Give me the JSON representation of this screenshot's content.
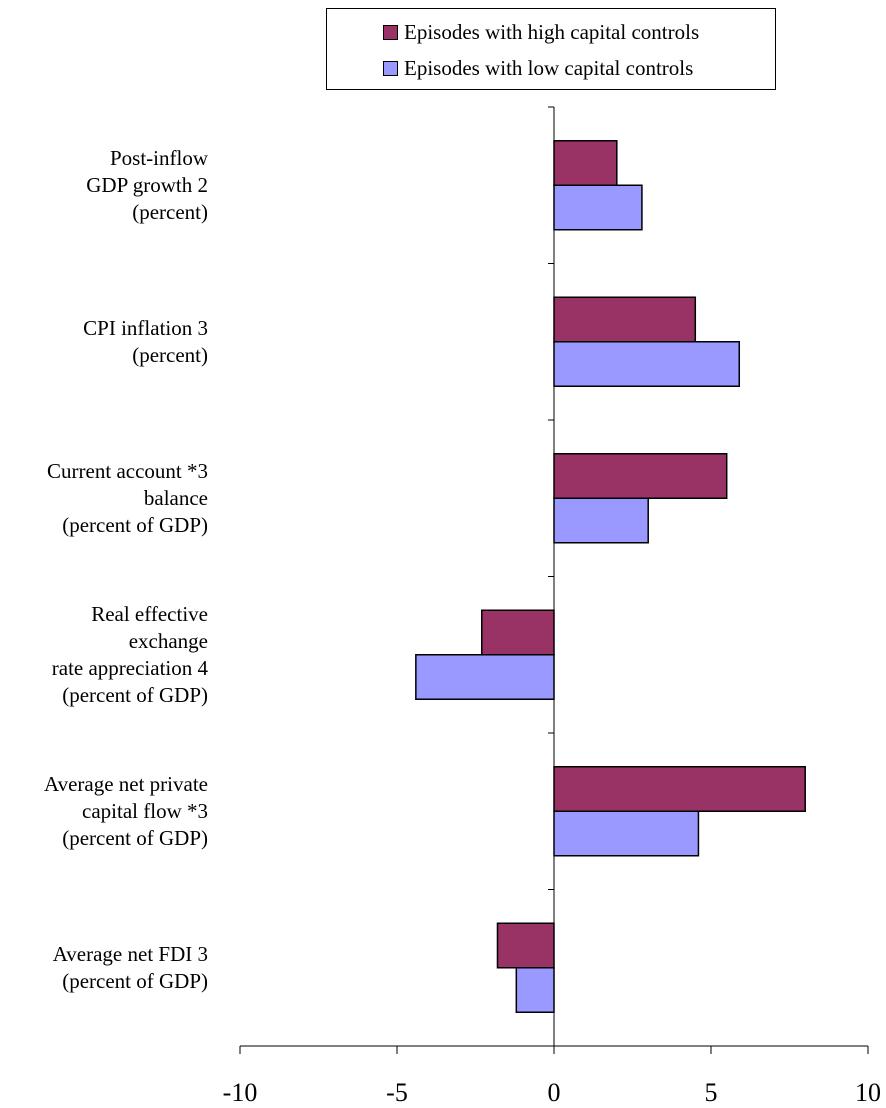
{
  "chart_data": {
    "type": "bar",
    "orientation": "horizontal",
    "title": "",
    "xlabel": "",
    "ylabel": "",
    "xlim": [
      -10,
      10
    ],
    "xticks": [
      "-10",
      "-5",
      "0",
      "5",
      "10"
    ],
    "categories": [
      [
        "Post-inflow",
        "GDP growth 2",
        "(percent)"
      ],
      [
        "CPI inflation 3",
        "(percent)"
      ],
      [
        "Current account *3",
        "balance",
        "(percent of GDP)"
      ],
      [
        "Real effective",
        "exchange",
        "rate appreciation 4",
        "(percent of GDP)"
      ],
      [
        "Average net private",
        "capital flow *3",
        "(percent of GDP)"
      ],
      [
        "Average net FDI 3",
        "(percent of GDP)"
      ]
    ],
    "series": [
      {
        "name": "Episodes with high capital controls",
        "color": "#993366",
        "values": [
          2.0,
          4.5,
          5.5,
          -2.3,
          8.0,
          -1.8
        ]
      },
      {
        "name": "Episodes with low capital controls",
        "color": "#9999ff",
        "values": [
          2.8,
          5.9,
          3.0,
          -4.4,
          4.6,
          -1.2
        ]
      }
    ],
    "legend_position": "top",
    "grid": false
  }
}
